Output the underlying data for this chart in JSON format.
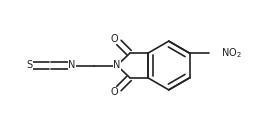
{
  "bg_color": "#ffffff",
  "line_color": "#222222",
  "text_color": "#222222",
  "line_width": 1.2,
  "double_sep": 0.012,
  "font_size": 7.0,
  "figsize": [
    2.62,
    1.31
  ],
  "dpi": 100,
  "xlim": [
    0.0,
    1.0
  ],
  "ylim": [
    0.0,
    0.5
  ]
}
